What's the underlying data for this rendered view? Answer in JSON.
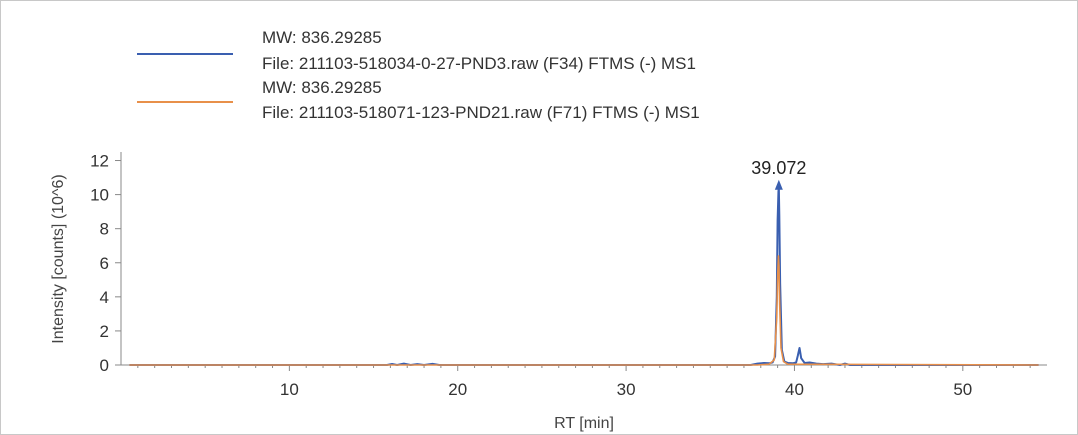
{
  "chart_data": {
    "type": "line",
    "xlabel": "RT [min]",
    "ylabel": "Intensity [counts] (10^6)",
    "xlim": [
      0,
      55
    ],
    "ylim": [
      0,
      12.5
    ],
    "x_ticks": [
      10,
      20,
      30,
      40,
      50
    ],
    "y_ticks": [
      0,
      2,
      4,
      6,
      8,
      10,
      12
    ],
    "grid": false,
    "legend_placement": "top-left",
    "peak_annotation": {
      "label": "39.072",
      "x": 39.072,
      "y": 10.4,
      "series": 0
    },
    "series": [
      {
        "mw": "MW: 836.29285",
        "file": "File: 211103-518034-0-27-PND3.raw (F34) FTMS (-) MS1",
        "color": "#3a5fb0",
        "x": [
          0.5,
          15.8,
          16.1,
          16.4,
          16.8,
          17.2,
          17.6,
          18.0,
          18.5,
          18.9,
          19.3,
          37.4,
          37.8,
          38.2,
          38.5,
          38.7,
          38.85,
          38.95,
          39.0,
          39.05,
          39.072,
          39.1,
          39.15,
          39.25,
          39.4,
          39.6,
          39.9,
          40.1,
          40.2,
          40.3,
          40.4,
          40.6,
          40.9,
          41.3,
          41.7,
          42.2,
          42.7,
          43.0,
          43.3,
          54.5
        ],
        "y": [
          0.0,
          0.0,
          0.06,
          0.0,
          0.08,
          0.0,
          0.05,
          0.0,
          0.07,
          0.0,
          0.0,
          0.0,
          0.08,
          0.12,
          0.1,
          0.15,
          0.5,
          4.0,
          8.5,
          10.2,
          10.4,
          8.8,
          4.8,
          0.9,
          0.2,
          0.12,
          0.1,
          0.15,
          0.55,
          1.0,
          0.4,
          0.12,
          0.15,
          0.08,
          0.05,
          0.08,
          0.0,
          0.08,
          0.0,
          0.0
        ]
      },
      {
        "mw": "MW: 836.29285",
        "file": "File: 211103-518071-123-PND21.raw (F71) FTMS (-) MS1",
        "color": "#e8904a",
        "x": [
          0.5,
          37.8,
          38.5,
          38.8,
          38.95,
          39.0,
          39.05,
          39.08,
          39.12,
          39.2,
          39.35,
          39.6,
          54.5
        ],
        "y": [
          0.0,
          0.0,
          0.05,
          0.3,
          2.8,
          5.2,
          6.4,
          5.8,
          3.6,
          1.0,
          0.2,
          0.05,
          0.0
        ]
      }
    ]
  }
}
